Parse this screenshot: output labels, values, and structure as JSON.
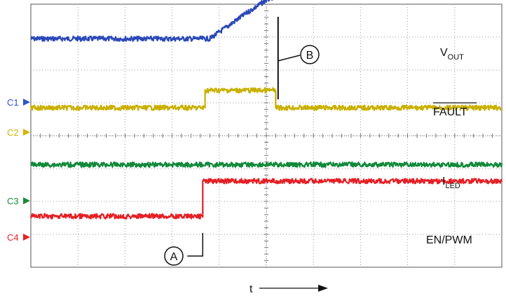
{
  "chart_data": {
    "type": "line",
    "title": "",
    "xlabel": "t",
    "ylabel": "",
    "grid": true,
    "x_divisions": 10,
    "y_divisions": 8,
    "channel_markers": [
      {
        "label": "C1",
        "color": "#2f55c6"
      },
      {
        "label": "C2",
        "color": "#d8b400"
      },
      {
        "label": "C3",
        "color": "#1a8a3a"
      },
      {
        "label": "C4",
        "color": "#e8232a"
      }
    ],
    "series": [
      {
        "name": "VOUT",
        "color": "#2a48b8",
        "x": [
          0,
          3.8,
          4.2,
          4.6,
          5.0,
          5.2,
          5.6,
          10
        ],
        "y": [
          6.95,
          6.95,
          7.35,
          7.75,
          8.12,
          8.25,
          8.25,
          8.25
        ]
      },
      {
        "name": "FAULT",
        "color": "#c9b000",
        "x": [
          0,
          3.7,
          3.7,
          5.2,
          5.2,
          10
        ],
        "y": [
          4.85,
          4.85,
          5.38,
          5.38,
          4.85,
          4.85
        ]
      },
      {
        "name": "ILED",
        "color": "#10893a",
        "x": [
          0,
          10
        ],
        "y": [
          3.12,
          3.12
        ]
      },
      {
        "name": "EN/PWM",
        "color": "#e51f25",
        "x": [
          0,
          3.65,
          3.65,
          10
        ],
        "y": [
          1.55,
          1.55,
          2.62,
          2.62
        ]
      }
    ],
    "trace_labels": {
      "vout_main": "V",
      "vout_sub": "OUT",
      "fault": "FAULT",
      "iled_main": "I",
      "iled_sub": "LED",
      "enpwm": "EN/PWM"
    },
    "annotations": [
      {
        "label": "A",
        "x": 3.65
      },
      {
        "label": "B",
        "x": 5.25
      }
    ]
  }
}
